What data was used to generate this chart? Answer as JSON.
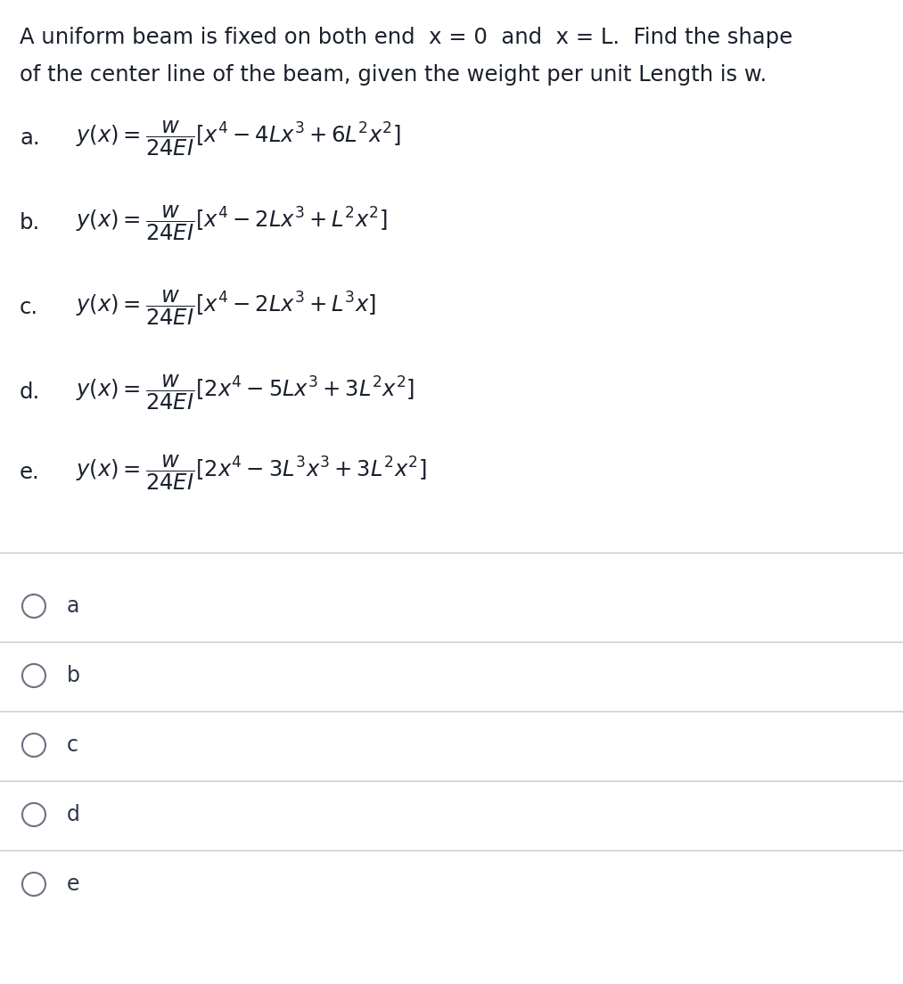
{
  "background_color": "#ffffff",
  "text_color": "#1a1a1a",
  "title_line1": "A uniform beam is fixed on both end  x = 0  and  x = L.  Find the shape",
  "title_line2": "of the center line of the beam, given the weight per unit Length is w.",
  "options": [
    {
      "label": "a.",
      "formula": "$y(x) = \\dfrac{w}{24EI}\\left[x^4 - 4Lx^3 + 6L^2x^2\\right]$"
    },
    {
      "label": "b.",
      "formula": "$y(x) = \\dfrac{w}{24EI}\\left[x^4 - 2Lx^3 + L^2x^2\\right]$"
    },
    {
      "label": "c.",
      "formula": "$y(x) = \\dfrac{w}{24EI}\\left[x^4 - 2Lx^3 + L^3x\\right]$"
    },
    {
      "label": "d.",
      "formula": "$y(x) = \\dfrac{w}{24EI}\\left[2x^4 - 5Lx^3 + 3L^2x^2\\right]$"
    },
    {
      "label": "e.",
      "formula": "$y(x) = \\dfrac{w}{24EI}\\left[2x^4 - 3L^3x^3 + 3L^2x^2\\right]$"
    }
  ],
  "radio_labels": [
    "a",
    "b",
    "c",
    "d",
    "e"
  ],
  "separator_color": "#c8c8c8",
  "radio_color": "#6b7280",
  "label_color": "#2d3748",
  "text_color_dark": "#1a202c",
  "title_fontsize": 17.5,
  "option_label_fontsize": 17.5,
  "option_formula_fontsize": 17.5,
  "radio_circle_fontsize": 17,
  "radio_label_fontsize": 17
}
